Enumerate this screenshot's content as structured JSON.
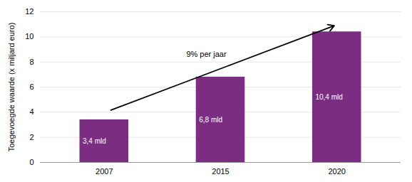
{
  "chart_data": {
    "type": "bar",
    "categories": [
      "2007",
      "2015",
      "2020"
    ],
    "values": [
      3.4,
      6.8,
      10.4
    ],
    "value_labels": [
      "3,4 mld",
      "6,8 mld",
      "10,4 mld"
    ],
    "data_labels": true,
    "color": "#7B2D82",
    "ylabel": "Toegevoegde waarde (x miljard euro)",
    "ylim": [
      0,
      12
    ],
    "yticks": [
      0,
      2,
      4,
      6,
      8,
      10,
      12
    ],
    "grid": true,
    "annotations": [
      "9% per jaar"
    ]
  }
}
